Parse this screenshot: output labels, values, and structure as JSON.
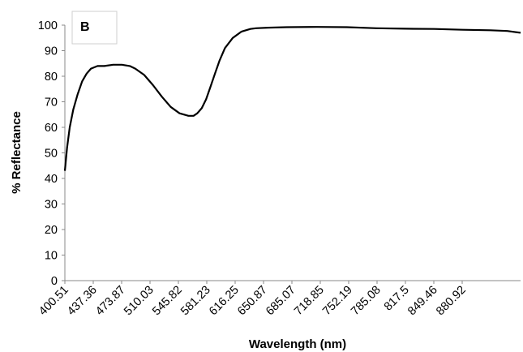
{
  "chart_data": {
    "type": "line",
    "panel_label": "B",
    "xlabel": "Wavelength (nm)",
    "ylabel": "% Reflectance",
    "ylim": [
      0,
      100
    ],
    "yticks": [
      0,
      10,
      20,
      30,
      40,
      50,
      60,
      70,
      80,
      90,
      100
    ],
    "xlim": [
      400.51,
      915
    ],
    "xticks": [
      "400.51",
      "437.36",
      "473.87",
      "510.03",
      "545.82",
      "581.23",
      "616.25",
      "650.87",
      "685.07",
      "718.85",
      "752.19",
      "785.08",
      "817.5",
      "849.46",
      "880.92"
    ],
    "grid": false,
    "legend": "none",
    "line_color": "#000000",
    "series": [
      {
        "x": [
          400.51,
          403,
          406,
          410,
          415,
          420,
          425,
          430,
          437.36,
          445,
          455,
          465,
          473.87,
          480,
          490,
          500,
          510.03,
          520,
          530,
          540,
          545.82,
          550,
          555,
          560,
          565,
          570,
          575,
          581.23,
          590,
          600,
          610,
          616.25,
          630,
          650.87,
          685.07,
          718.85,
          752.19,
          785.08,
          817.5,
          849.46,
          880.92,
          900,
          915
        ],
        "values": [
          43,
          52,
          60,
          67,
          73,
          78,
          81,
          83,
          84,
          84,
          84.5,
          84.5,
          84,
          83,
          80.5,
          76.5,
          72,
          68,
          65.5,
          64.5,
          64.5,
          65.5,
          67.5,
          71,
          76,
          81,
          86,
          91,
          95,
          97.5,
          98.5,
          98.8,
          99,
          99.2,
          99.3,
          99.2,
          98.8,
          98.6,
          98.5,
          98.2,
          98,
          97.7,
          97
        ]
      }
    ]
  }
}
